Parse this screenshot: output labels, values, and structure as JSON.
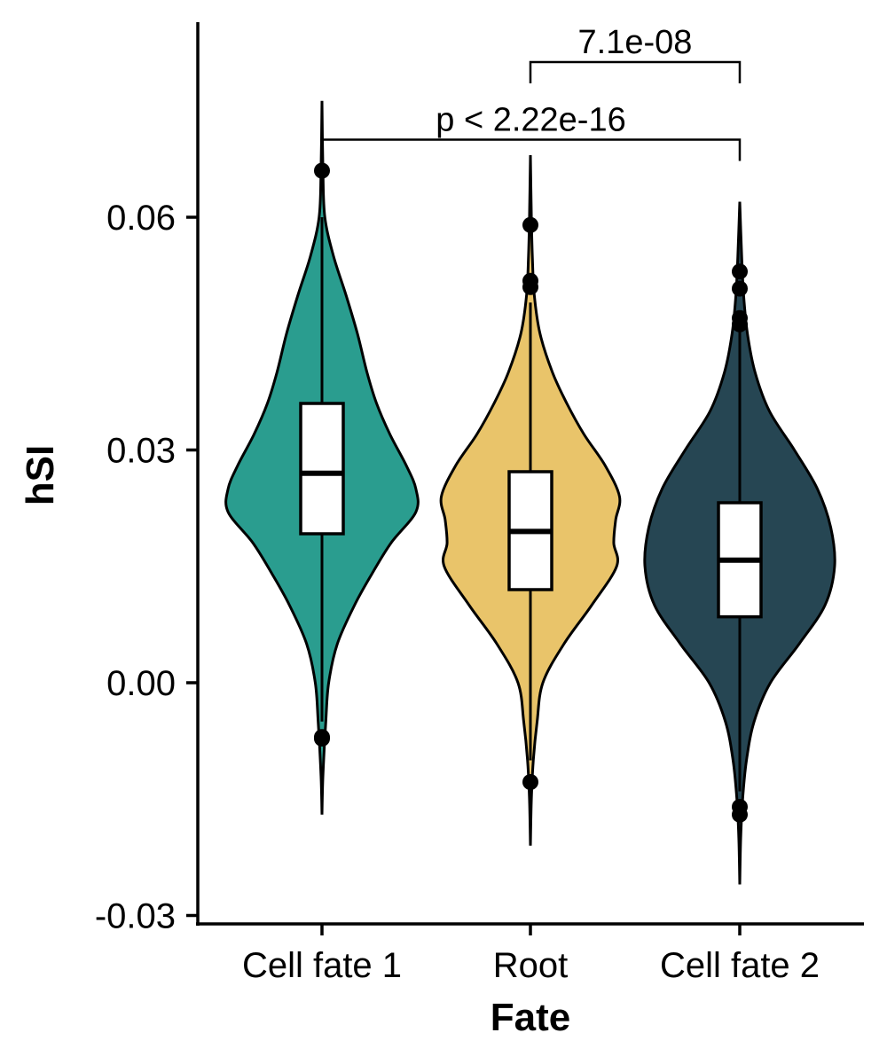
{
  "chart_data": {
    "type": "violin",
    "xlabel": "Fate",
    "ylabel": "hSI",
    "ylim": [
      -0.031,
      0.085
    ],
    "yticks": [
      {
        "value": -0.03,
        "label": "-0.03"
      },
      {
        "value": 0.0,
        "label": "0.00"
      },
      {
        "value": 0.03,
        "label": "0.03"
      },
      {
        "value": 0.06,
        "label": "0.06"
      }
    ],
    "categories": [
      "Cell fate 1",
      "Root",
      "Cell fate 2"
    ],
    "groups": [
      {
        "name": "Cell fate 1",
        "color": "#2a9d8f",
        "min": -0.017,
        "max": 0.075,
        "box": {
          "q1": 0.0192,
          "median": 0.027,
          "q3": 0.036,
          "whisker_low": -0.005,
          "whisker_high": 0.06
        },
        "outliers": [
          0.066,
          -0.007,
          -0.0072
        ],
        "density": [
          [
            -0.017,
            0.0
          ],
          [
            -0.012,
            0.01
          ],
          [
            -0.005,
            0.04
          ],
          [
            0.0,
            0.07
          ],
          [
            0.005,
            0.16
          ],
          [
            0.01,
            0.34
          ],
          [
            0.014,
            0.52
          ],
          [
            0.018,
            0.72
          ],
          [
            0.022,
            0.98
          ],
          [
            0.025,
            0.98
          ],
          [
            0.028,
            0.88
          ],
          [
            0.032,
            0.71
          ],
          [
            0.036,
            0.57
          ],
          [
            0.04,
            0.47
          ],
          [
            0.045,
            0.37
          ],
          [
            0.05,
            0.25
          ],
          [
            0.055,
            0.12
          ],
          [
            0.06,
            0.03
          ],
          [
            0.066,
            0.01
          ],
          [
            0.075,
            0.0
          ]
        ]
      },
      {
        "name": "Root",
        "color": "#e9c46a",
        "min": -0.021,
        "max": 0.068,
        "box": {
          "q1": 0.012,
          "median": 0.0195,
          "q3": 0.0272,
          "whisker_low": -0.01,
          "whisker_high": 0.049
        },
        "outliers": [
          0.059,
          0.0518,
          0.051,
          -0.0128
        ],
        "density": [
          [
            -0.021,
            0.0
          ],
          [
            -0.015,
            0.01
          ],
          [
            -0.01,
            0.03
          ],
          [
            -0.005,
            0.07
          ],
          [
            0.0,
            0.13
          ],
          [
            0.005,
            0.35
          ],
          [
            0.01,
            0.64
          ],
          [
            0.015,
            0.9
          ],
          [
            0.018,
            0.87
          ],
          [
            0.021,
            0.89
          ],
          [
            0.024,
            0.93
          ],
          [
            0.028,
            0.78
          ],
          [
            0.032,
            0.56
          ],
          [
            0.036,
            0.38
          ],
          [
            0.04,
            0.23
          ],
          [
            0.045,
            0.1
          ],
          [
            0.05,
            0.04
          ],
          [
            0.055,
            0.02
          ],
          [
            0.06,
            0.01
          ],
          [
            0.068,
            0.0
          ]
        ]
      },
      {
        "name": "Cell fate 2",
        "color": "#264653",
        "min": -0.026,
        "max": 0.062,
        "box": {
          "q1": 0.0085,
          "median": 0.0158,
          "q3": 0.0232,
          "whisker_low": -0.014,
          "whisker_high": 0.046
        },
        "outliers": [
          0.053,
          0.0508,
          0.047,
          0.0462,
          -0.016,
          -0.017
        ],
        "density": [
          [
            -0.026,
            0.0
          ],
          [
            -0.02,
            0.01
          ],
          [
            -0.015,
            0.03
          ],
          [
            -0.01,
            0.07
          ],
          [
            -0.005,
            0.15
          ],
          [
            0.0,
            0.32
          ],
          [
            0.005,
            0.62
          ],
          [
            0.01,
            0.89
          ],
          [
            0.015,
            0.99
          ],
          [
            0.02,
            0.95
          ],
          [
            0.025,
            0.81
          ],
          [
            0.03,
            0.57
          ],
          [
            0.035,
            0.31
          ],
          [
            0.04,
            0.16
          ],
          [
            0.045,
            0.08
          ],
          [
            0.05,
            0.04
          ],
          [
            0.055,
            0.02
          ],
          [
            0.062,
            0.0
          ]
        ]
      }
    ],
    "comparisons": [
      {
        "groups": [
          "Cell fate 1",
          "Cell fate 2"
        ],
        "label": "p < 2.22e-16",
        "y": 0.07
      },
      {
        "groups": [
          "Root",
          "Cell fate 2"
        ],
        "label": "7.1e-08",
        "y": 0.08
      }
    ]
  }
}
